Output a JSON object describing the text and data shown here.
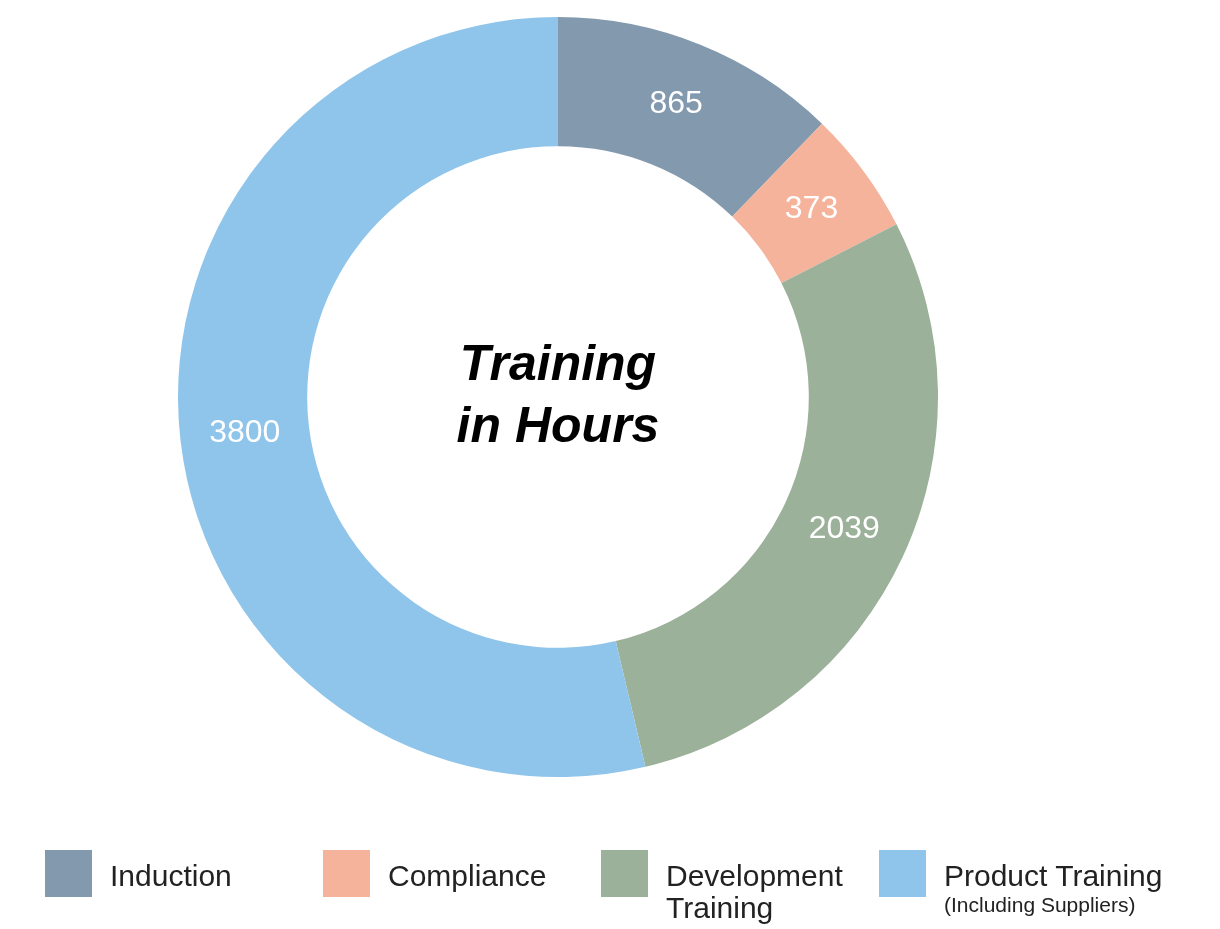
{
  "chart_data": {
    "type": "donut",
    "title": "Training in Hours",
    "categories": [
      "Induction",
      "Compliance",
      "Development Training",
      "Product Training (Including Suppliers)"
    ],
    "values": [
      865,
      373,
      2039,
      3800
    ],
    "colors": [
      "#8399ae",
      "#f5b39b",
      "#9bb199",
      "#90c5eb"
    ],
    "data_labels": true,
    "legend": "bottom"
  }
}
